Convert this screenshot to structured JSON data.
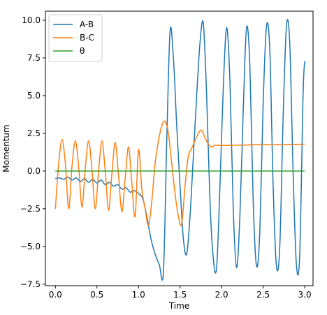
{
  "chart_data": {
    "type": "line",
    "title": "",
    "xlabel": "Time",
    "ylabel": "Momentum",
    "xlim": [
      -0.12,
      3.1
    ],
    "ylim": [
      -7.6,
      10.6
    ],
    "xticks": [
      0.0,
      0.5,
      1.0,
      1.5,
      2.0,
      2.5,
      3.0
    ],
    "xtick_labels": [
      "0.0",
      "0.5",
      "1.0",
      "1.5",
      "2.0",
      "2.5",
      "3.0"
    ],
    "yticks": [
      -7.5,
      -5.0,
      -2.5,
      0.0,
      2.5,
      5.0,
      7.5,
      10.0
    ],
    "ytick_labels": [
      "−7.5",
      "−5.0",
      "−2.5",
      "0.0",
      "2.5",
      "5.0",
      "7.5",
      "10.0"
    ],
    "grid": false,
    "legend_position": "top-left",
    "series": [
      {
        "name": "A-B",
        "color": "#1f77b4",
        "x": [
          0.0,
          0.05,
          0.1,
          0.15,
          0.2,
          0.25,
          0.3,
          0.35,
          0.4,
          0.45,
          0.5,
          0.55,
          0.6,
          0.65,
          0.7,
          0.75,
          0.8,
          0.85,
          0.9,
          0.95,
          1.0,
          1.05,
          1.1,
          1.15,
          1.2,
          1.25,
          1.3,
          1.34,
          1.38,
          1.42,
          1.46,
          1.5,
          1.54,
          1.58,
          1.62,
          1.66,
          1.7,
          1.74,
          1.78,
          1.82,
          1.86,
          1.9,
          1.94,
          1.98,
          2.02,
          2.06,
          2.1,
          2.14,
          2.18,
          2.22,
          2.26,
          2.3,
          2.34,
          2.38,
          2.42,
          2.46,
          2.5,
          2.54,
          2.58,
          2.62,
          2.66,
          2.7,
          2.74,
          2.78,
          2.82,
          2.86,
          2.9,
          2.94,
          2.98,
          3.0
        ],
        "y": [
          -0.5,
          -0.45,
          -0.55,
          -0.4,
          -0.6,
          -0.45,
          -0.7,
          -0.5,
          -0.75,
          -0.55,
          -0.8,
          -0.6,
          -0.9,
          -0.75,
          -1.0,
          -0.9,
          -1.2,
          -1.1,
          -1.4,
          -1.3,
          -1.5,
          -1.8,
          -3.0,
          -4.5,
          -5.5,
          -6.2,
          -6.7,
          2.0,
          9.3,
          7.5,
          3.0,
          -1.0,
          -4.5,
          -5.5,
          -3.0,
          1.0,
          5.0,
          8.5,
          9.8,
          5.0,
          -2.0,
          -5.8,
          -6.4,
          -1.0,
          5.5,
          9.5,
          6.0,
          -2.5,
          -6.4,
          -3.0,
          4.0,
          9.5,
          7.0,
          -2.0,
          -6.3,
          -4.0,
          4.5,
          9.6,
          8.0,
          -1.0,
          -6.3,
          -5.0,
          3.5,
          9.6,
          8.5,
          0.0,
          -6.2,
          -5.5,
          5.0,
          7.3
        ]
      },
      {
        "name": "B-C",
        "color": "#ff7f0e",
        "x": [
          0.0,
          0.04,
          0.08,
          0.12,
          0.16,
          0.2,
          0.24,
          0.28,
          0.32,
          0.36,
          0.4,
          0.44,
          0.48,
          0.52,
          0.56,
          0.6,
          0.64,
          0.68,
          0.72,
          0.76,
          0.8,
          0.84,
          0.88,
          0.92,
          0.96,
          1.0,
          1.04,
          1.08,
          1.12,
          1.16,
          1.2,
          1.24,
          1.28,
          1.32,
          1.36,
          1.4,
          1.44,
          1.48,
          1.52,
          1.56,
          1.6,
          1.64,
          1.68,
          1.72,
          1.76,
          1.8,
          1.84,
          1.88,
          1.92,
          1.96,
          2.0,
          2.1,
          2.2,
          2.3,
          2.4,
          2.5,
          2.6,
          2.7,
          2.8,
          2.9,
          3.0
        ],
        "y": [
          -2.5,
          0.5,
          2.1,
          0.5,
          -2.5,
          0.3,
          2.0,
          0.3,
          -2.4,
          0.2,
          2.0,
          0.1,
          -2.5,
          0.0,
          2.0,
          0.0,
          -2.6,
          -0.2,
          1.9,
          -0.3,
          -2.7,
          -0.5,
          1.6,
          -0.8,
          -3.0,
          1.4,
          -1.2,
          -2.5,
          -3.6,
          -2.0,
          0.5,
          2.0,
          3.0,
          3.3,
          2.5,
          0.5,
          -1.5,
          -3.0,
          -3.5,
          -1.0,
          1.0,
          1.5,
          2.0,
          2.5,
          2.7,
          2.2,
          1.8,
          1.6,
          1.7,
          1.7,
          1.7,
          1.7,
          1.72,
          1.72,
          1.75,
          1.75,
          1.75,
          1.76,
          1.76,
          1.77,
          1.78
        ]
      },
      {
        "name": "θ",
        "color": "#2ca02c",
        "x": [
          0.0,
          3.0
        ],
        "y": [
          0.0,
          0.0
        ]
      }
    ]
  }
}
